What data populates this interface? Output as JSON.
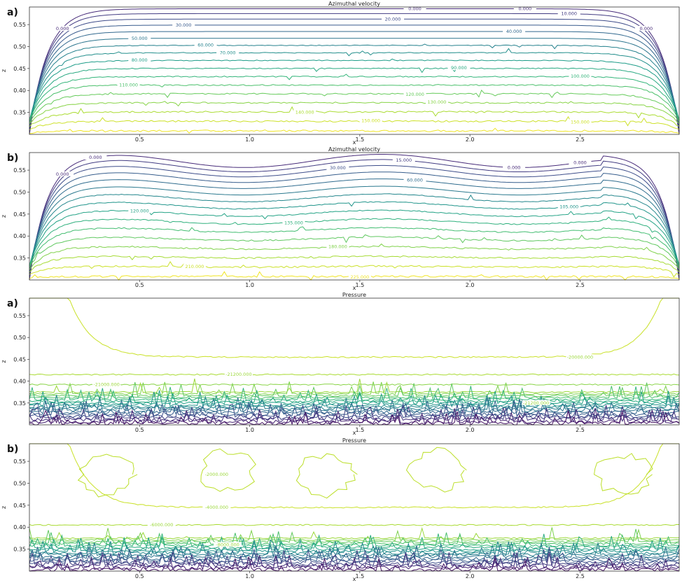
{
  "chart_data": [
    {
      "type": "contour",
      "panel_label": "a)",
      "title": "Azimuthal velocity",
      "xlabel": "x",
      "ylabel": "z",
      "xlim": [
        0.0,
        2.95
      ],
      "ylim": [
        0.3,
        0.59
      ],
      "xticks": [
        "0.5",
        "1.0",
        "1.5",
        "2.0",
        "2.5"
      ],
      "yticks": [
        "0.35",
        "0.40",
        "0.45",
        "0.50",
        "0.55"
      ],
      "shape": "flat",
      "levels": [
        0,
        10,
        20,
        30,
        40,
        50,
        60,
        70,
        80,
        90,
        100,
        110,
        120,
        130,
        140,
        150,
        160
      ],
      "contour_labels": [
        {
          "text": "0.000",
          "x": 0.15,
          "level": 0
        },
        {
          "text": "0.000",
          "x": 1.75,
          "level": 0
        },
        {
          "text": "0.000",
          "x": 2.25,
          "level": 0
        },
        {
          "text": "0.000",
          "x": 2.8,
          "level": 0
        },
        {
          "text": "10.000",
          "x": 2.45,
          "level": 10
        },
        {
          "text": "20.000",
          "x": 1.65,
          "level": 20
        },
        {
          "text": "30.000",
          "x": 0.7,
          "level": 30
        },
        {
          "text": "40.000",
          "x": 2.2,
          "level": 40
        },
        {
          "text": "50.000",
          "x": 0.5,
          "level": 50
        },
        {
          "text": "60.000",
          "x": 0.8,
          "level": 60
        },
        {
          "text": "70.000",
          "x": 0.9,
          "level": 70
        },
        {
          "text": "80.000",
          "x": 0.5,
          "level": 80
        },
        {
          "text": "90.000",
          "x": 1.95,
          "level": 90
        },
        {
          "text": "100.000",
          "x": 2.5,
          "level": 100
        },
        {
          "text": "110.000",
          "x": 0.45,
          "level": 110
        },
        {
          "text": "120.000",
          "x": 1.75,
          "level": 120
        },
        {
          "text": "130.000",
          "x": 1.85,
          "level": 130
        },
        {
          "text": "140.000",
          "x": 1.25,
          "level": 140
        },
        {
          "text": "150.000",
          "x": 1.55,
          "level": 150
        },
        {
          "text": "150.000",
          "x": 2.5,
          "level": 150
        }
      ]
    },
    {
      "type": "contour",
      "panel_label": "b)",
      "title": "Azimuthal velocity",
      "xlabel": "x",
      "ylabel": "z",
      "xlim": [
        0.0,
        2.95
      ],
      "ylim": [
        0.3,
        0.59
      ],
      "xticks": [
        "0.5",
        "1.0",
        "1.5",
        "2.0",
        "2.5"
      ],
      "yticks": [
        "0.35",
        "0.40",
        "0.45",
        "0.50",
        "0.55"
      ],
      "shape": "wave",
      "levels": [
        0,
        15,
        30,
        45,
        60,
        75,
        90,
        105,
        120,
        135,
        150,
        165,
        180,
        195,
        210,
        225
      ],
      "contour_labels": [
        {
          "text": "0.000",
          "x": 0.15,
          "level": 0
        },
        {
          "text": "0.000",
          "x": 0.3,
          "level": 0
        },
        {
          "text": "0.000",
          "x": 2.2,
          "level": 0
        },
        {
          "text": "0.000",
          "x": 2.5,
          "level": 0
        },
        {
          "text": "15.000",
          "x": 1.7,
          "level": 15
        },
        {
          "text": "30.000",
          "x": 1.4,
          "level": 30
        },
        {
          "text": "60.000",
          "x": 1.75,
          "level": 60
        },
        {
          "text": "105.000",
          "x": 2.45,
          "level": 105
        },
        {
          "text": "120.000",
          "x": 0.5,
          "level": 120
        },
        {
          "text": "135.000",
          "x": 1.2,
          "level": 135
        },
        {
          "text": "180.000",
          "x": 1.4,
          "level": 180
        },
        {
          "text": "210.000",
          "x": 0.75,
          "level": 210
        },
        {
          "text": "225.000",
          "x": 1.5,
          "level": 225
        }
      ]
    },
    {
      "type": "contour",
      "panel_label": "a)",
      "title": "Pressure",
      "xlabel": "x",
      "ylabel": "z",
      "xlim": [
        0.0,
        2.95
      ],
      "ylim": [
        0.3,
        0.59
      ],
      "xticks": [
        "0.5",
        "1.0",
        "1.5",
        "2.0",
        "2.5"
      ],
      "yticks": [
        "0.35",
        "0.40",
        "0.45",
        "0.50",
        "0.55"
      ],
      "contour_labels": [
        {
          "text": "-20000.000",
          "x": 2.5
        },
        {
          "text": "-21200.000",
          "x": 0.95
        },
        {
          "text": "-21000.000",
          "x": 0.35
        },
        {
          "text": "-21200.000",
          "x": 2.3
        }
      ]
    },
    {
      "type": "contour",
      "panel_label": "b)",
      "title": "Pressure",
      "xlabel": "x",
      "ylabel": "z",
      "xlim": [
        0.0,
        2.95
      ],
      "ylim": [
        0.3,
        0.59
      ],
      "xticks": [
        "0.5",
        "1.0",
        "1.5",
        "2.0",
        "2.5"
      ],
      "yticks": [
        "0.35",
        "0.40",
        "0.45",
        "0.50",
        "0.55"
      ],
      "contour_labels": [
        {
          "text": "-2000.000",
          "x": 0.85
        },
        {
          "text": "-4000.000",
          "x": 0.85
        },
        {
          "text": "-6000.000",
          "x": 0.6
        },
        {
          "text": "-8000.000",
          "x": 0.9
        }
      ]
    }
  ]
}
